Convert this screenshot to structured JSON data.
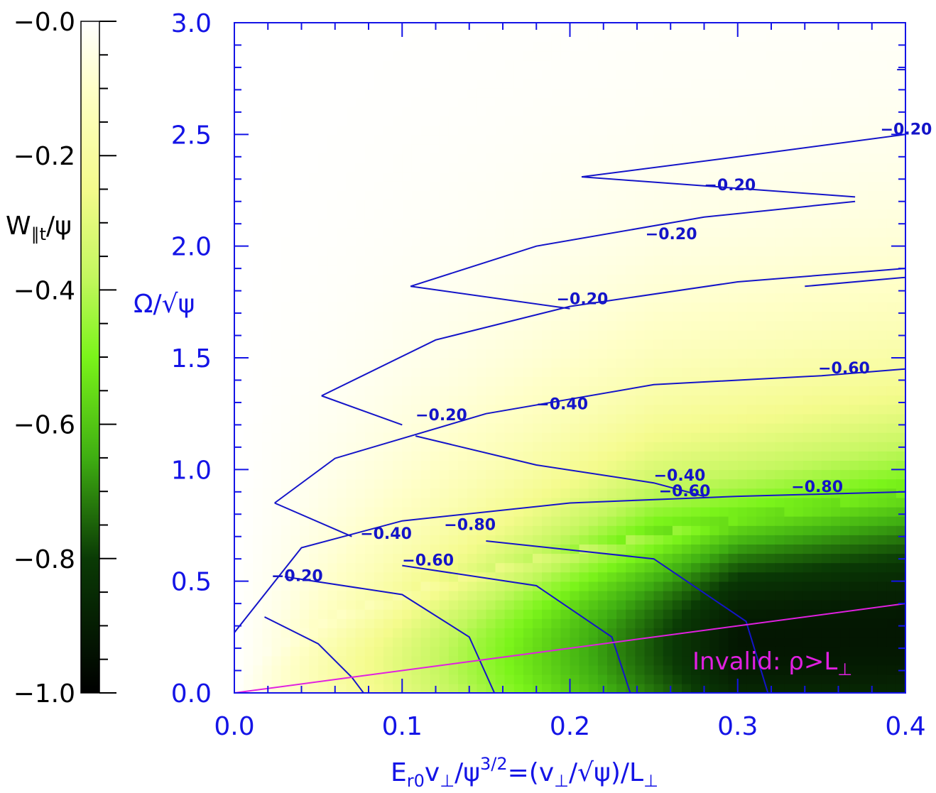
{
  "chart_data": {
    "type": "heatmap",
    "xlabel": "E_r0 v_⊥/ψ^(3/2)=(v_⊥/√ψ)/L_⊥",
    "ylabel": "Ω/√ψ",
    "xlim": [
      0.0,
      0.4
    ],
    "ylim": [
      0.0,
      3.0
    ],
    "x_ticks": [
      "0.0",
      "0.1",
      "0.2",
      "0.3",
      "0.4"
    ],
    "x_tick_values": [
      0.0,
      0.1,
      0.2,
      0.3,
      0.4
    ],
    "y_ticks": [
      "0.0",
      "0.5",
      "1.0",
      "1.5",
      "2.0",
      "2.5",
      "3.0"
    ],
    "y_tick_values": [
      0.0,
      0.5,
      1.0,
      1.5,
      2.0,
      2.5,
      3.0
    ],
    "colorbar": {
      "label": "W_∥t/ψ",
      "range": [
        -1.0,
        0.0
      ],
      "ticks": [
        "−0.0",
        "−0.2",
        "−0.4",
        "−0.6",
        "−0.8",
        "−1.0"
      ],
      "tick_values": [
        0.0,
        -0.2,
        -0.4,
        -0.6,
        -0.8,
        -1.0
      ],
      "colormap": [
        "#000000",
        "#2f8a12",
        "#7bf41a",
        "#dcf98c",
        "#ffffc4",
        "#ffffff"
      ]
    },
    "contour_levels": [
      -0.2,
      -0.4,
      -0.6,
      -0.8
    ],
    "contour_labels": [
      {
        "text": "−0.20",
        "x": 0.022,
        "y": 0.5
      },
      {
        "text": "−0.40",
        "x": 0.075,
        "y": 0.69
      },
      {
        "text": "−0.60",
        "x": 0.1,
        "y": 0.57
      },
      {
        "text": "−0.80",
        "x": 0.125,
        "y": 0.73
      },
      {
        "text": "−0.20",
        "x": 0.108,
        "y": 1.22
      },
      {
        "text": "−0.40",
        "x": 0.18,
        "y": 1.27
      },
      {
        "text": "−0.40",
        "x": 0.25,
        "y": 0.95
      },
      {
        "text": "−0.60",
        "x": 0.253,
        "y": 0.88
      },
      {
        "text": "−0.80",
        "x": 0.332,
        "y": 0.9
      },
      {
        "text": "−0.60",
        "x": 0.348,
        "y": 1.43
      },
      {
        "text": "−0.20",
        "x": 0.192,
        "y": 1.74
      },
      {
        "text": "−0.20",
        "x": 0.245,
        "y": 2.03
      },
      {
        "text": "−0.20",
        "x": 0.28,
        "y": 2.25
      },
      {
        "text": "−0.20",
        "x": 0.385,
        "y": 2.5
      }
    ],
    "invalid_line": {
      "x": [
        0.0,
        0.4
      ],
      "y": [
        0.0,
        0.4
      ],
      "color": "#e020e0"
    },
    "invalid_label": "Invalid: ρ>L_⊥",
    "colors": {
      "axis": "#1414e6",
      "contour": "#1414c8",
      "invalid": "#e020e0",
      "colorbar_text": "#000000"
    }
  }
}
